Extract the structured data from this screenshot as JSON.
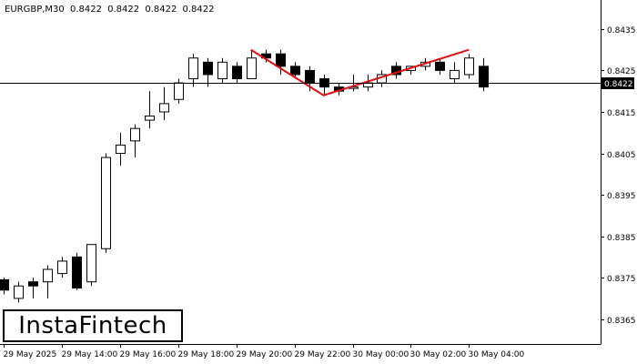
{
  "header": {
    "symbol": "EURGBP,M30",
    "values": [
      "0.8422",
      "0.8422",
      "0.8422",
      "0.8422"
    ]
  },
  "logo": "InstaFintech",
  "colors": {
    "background": "#ffffff",
    "candle": "#000000",
    "pattern": "#e01010",
    "price_label_bg": "#000000",
    "price_label_text": "#ffffff"
  },
  "chart_data": {
    "type": "candlestick",
    "title": "",
    "ylim": [
      0.8359,
      0.8442
    ],
    "y_ticks": [
      "0.8435",
      "0.8425",
      "0.8415",
      "0.8405",
      "0.8395",
      "0.8385",
      "0.8375",
      "0.8365"
    ],
    "x_ticks": [
      "29 May 2025",
      "29 May 14:00",
      "29 May 16:00",
      "29 May 18:00",
      "29 May 20:00",
      "29 May 22:00",
      "30 May 00:00",
      "30 May 02:00",
      "30 May 04:00"
    ],
    "current_price": "0.8422",
    "candles": [
      {
        "o": 0.83745,
        "h": 0.8375,
        "l": 0.8371,
        "c": 0.8372
      },
      {
        "o": 0.837,
        "h": 0.8374,
        "l": 0.8369,
        "c": 0.8373
      },
      {
        "o": 0.8374,
        "h": 0.8375,
        "l": 0.837,
        "c": 0.8373
      },
      {
        "o": 0.8374,
        "h": 0.8378,
        "l": 0.837,
        "c": 0.8377
      },
      {
        "o": 0.8376,
        "h": 0.838,
        "l": 0.8375,
        "c": 0.8379
      },
      {
        "o": 0.838,
        "h": 0.8381,
        "l": 0.8372,
        "c": 0.83725
      },
      {
        "o": 0.8374,
        "h": 0.8383,
        "l": 0.8373,
        "c": 0.8383
      },
      {
        "o": 0.8382,
        "h": 0.8405,
        "l": 0.8381,
        "c": 0.8404
      },
      {
        "o": 0.8405,
        "h": 0.841,
        "l": 0.8402,
        "c": 0.8407
      },
      {
        "o": 0.8408,
        "h": 0.8412,
        "l": 0.8404,
        "c": 0.8411
      },
      {
        "o": 0.8413,
        "h": 0.842,
        "l": 0.8411,
        "c": 0.8414
      },
      {
        "o": 0.8415,
        "h": 0.8421,
        "l": 0.8413,
        "c": 0.8417
      },
      {
        "o": 0.8418,
        "h": 0.8423,
        "l": 0.8417,
        "c": 0.8422
      },
      {
        "o": 0.8423,
        "h": 0.8429,
        "l": 0.8421,
        "c": 0.8428
      },
      {
        "o": 0.8427,
        "h": 0.8428,
        "l": 0.8421,
        "c": 0.8424
      },
      {
        "o": 0.8423,
        "h": 0.8428,
        "l": 0.8422,
        "c": 0.8427
      },
      {
        "o": 0.8426,
        "h": 0.8427,
        "l": 0.8422,
        "c": 0.8423
      },
      {
        "o": 0.8423,
        "h": 0.843,
        "l": 0.8423,
        "c": 0.8428
      },
      {
        "o": 0.8429,
        "h": 0.843,
        "l": 0.8427,
        "c": 0.8428
      },
      {
        "o": 0.8429,
        "h": 0.843,
        "l": 0.8424,
        "c": 0.8426
      },
      {
        "o": 0.8426,
        "h": 0.8427,
        "l": 0.8423,
        "c": 0.8424
      },
      {
        "o": 0.8425,
        "h": 0.8426,
        "l": 0.842,
        "c": 0.8422
      },
      {
        "o": 0.8423,
        "h": 0.8424,
        "l": 0.8419,
        "c": 0.8421
      },
      {
        "o": 0.8421,
        "h": 0.8422,
        "l": 0.8419,
        "c": 0.842
      },
      {
        "o": 0.8421,
        "h": 0.8424,
        "l": 0.842,
        "c": 0.8421
      },
      {
        "o": 0.8421,
        "h": 0.8424,
        "l": 0.842,
        "c": 0.8422
      },
      {
        "o": 0.8422,
        "h": 0.8425,
        "l": 0.8421,
        "c": 0.8424
      },
      {
        "o": 0.8426,
        "h": 0.8427,
        "l": 0.8423,
        "c": 0.8424
      },
      {
        "o": 0.8425,
        "h": 0.8426,
        "l": 0.8424,
        "c": 0.8426
      },
      {
        "o": 0.8426,
        "h": 0.8428,
        "l": 0.8425,
        "c": 0.8427
      },
      {
        "o": 0.8427,
        "h": 0.8428,
        "l": 0.8424,
        "c": 0.8425
      },
      {
        "o": 0.8423,
        "h": 0.8427,
        "l": 0.8422,
        "c": 0.8425
      },
      {
        "o": 0.8424,
        "h": 0.8429,
        "l": 0.8423,
        "c": 0.8428
      },
      {
        "o": 0.8426,
        "h": 0.8428,
        "l": 0.842,
        "c": 0.8421
      }
    ],
    "pattern_line": [
      {
        "candle": 17,
        "price": 0.843
      },
      {
        "candle": 22,
        "price": 0.8419
      },
      {
        "candle": 32,
        "price": 0.843
      }
    ]
  }
}
